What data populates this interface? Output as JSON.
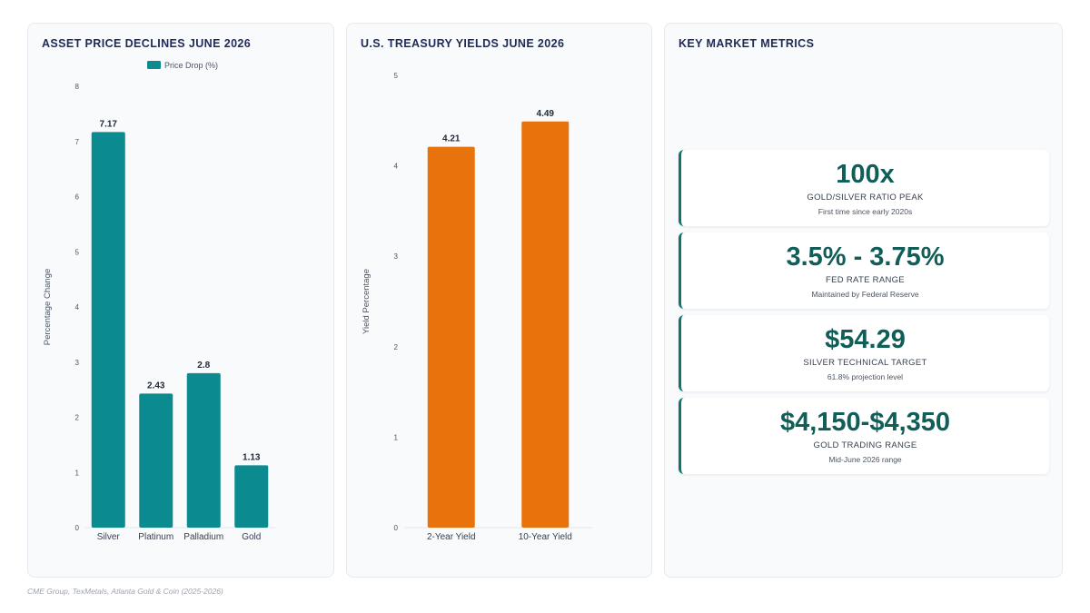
{
  "colors": {
    "teal": "#0b8a8f",
    "orange": "#e8720c",
    "metric": "#115e59"
  },
  "chart_data": [
    {
      "type": "bar",
      "title": "ASSET PRICE DECLINES JUNE 2026",
      "categories": [
        "Silver",
        "Platinum",
        "Palladium",
        "Gold"
      ],
      "series": [
        {
          "name": "Price Drop (%)",
          "values": [
            7.17,
            2.43,
            2.8,
            1.13
          ]
        }
      ],
      "xlabel": "",
      "ylabel": "Percentage Change",
      "ylim": [
        0,
        8
      ],
      "yticks": [
        "0",
        "1",
        "2",
        "3",
        "4",
        "5",
        "6",
        "7",
        "8"
      ],
      "data_labels": [
        "7.17",
        "2.43",
        "2.8",
        "1.13"
      ],
      "legend": "top-center",
      "grid": false
    },
    {
      "type": "bar",
      "title": "U.S. TREASURY YIELDS JUNE 2026",
      "categories": [
        "2-Year Yield",
        "10-Year Yield"
      ],
      "values": [
        4.21,
        4.49
      ],
      "xlabel": "",
      "ylabel": "Yield Percentage",
      "ylim": [
        0,
        5
      ],
      "yticks": [
        "0",
        "1",
        "2",
        "3",
        "4",
        "5"
      ],
      "data_labels": [
        "4.21",
        "4.49"
      ],
      "legend": "none",
      "grid": false
    }
  ],
  "metrics": {
    "title": "KEY MARKET METRICS",
    "items": [
      {
        "value": "100x",
        "label": "GOLD/SILVER RATIO PEAK",
        "sub": "First time since early 2020s"
      },
      {
        "value": "3.5% - 3.75%",
        "label": "FED RATE RANGE",
        "sub": "Maintained by Federal Reserve"
      },
      {
        "value": "$54.29",
        "label": "SILVER TECHNICAL TARGET",
        "sub": "61.8% projection level"
      },
      {
        "value": "$4,150-$4,350",
        "label": "GOLD TRADING RANGE",
        "sub": "Mid-June 2026 range"
      }
    ]
  },
  "source": "CME Group, TexMetals, Atlanta Gold & Coin (2025-2026)"
}
